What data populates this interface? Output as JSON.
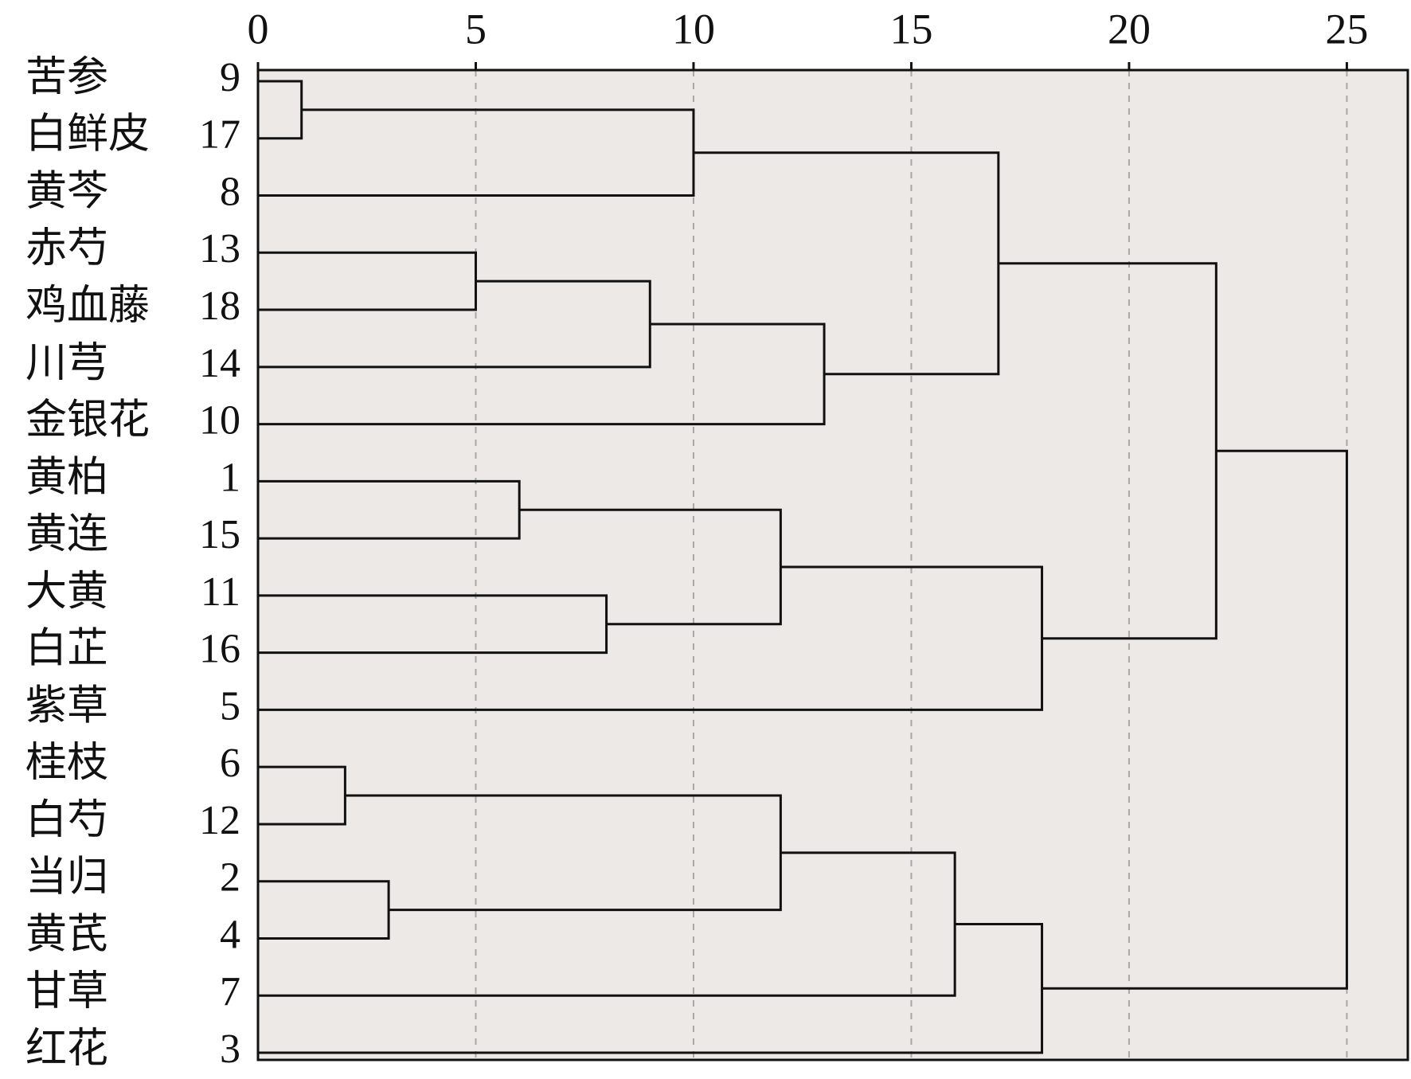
{
  "chart_data": {
    "type": "dendrogram",
    "orientation": "horizontal",
    "xlim": [
      0,
      26.4
    ],
    "xticks": [
      0,
      5,
      10,
      15,
      20,
      25
    ],
    "grid": true,
    "background": "#ece9e6",
    "line_color": "#111111",
    "grid_color": "#a8a8a8",
    "leaves": [
      {
        "label": "苦参",
        "id": 9
      },
      {
        "label": "白鲜皮",
        "id": 17
      },
      {
        "label": "黄芩",
        "id": 8
      },
      {
        "label": "赤芍",
        "id": 13
      },
      {
        "label": "鸡血藤",
        "id": 18
      },
      {
        "label": "川芎",
        "id": 14
      },
      {
        "label": "金银花",
        "id": 10
      },
      {
        "label": "黄柏",
        "id": 1
      },
      {
        "label": "黄连",
        "id": 15
      },
      {
        "label": "大黄",
        "id": 11
      },
      {
        "label": "白芷",
        "id": 16
      },
      {
        "label": "紫草",
        "id": 5
      },
      {
        "label": "桂枝",
        "id": 6
      },
      {
        "label": "白芍",
        "id": 12
      },
      {
        "label": "当归",
        "id": 2
      },
      {
        "label": "黄芪",
        "id": 4
      },
      {
        "label": "甘草",
        "id": 7
      },
      {
        "label": "红花",
        "id": 3
      }
    ],
    "merges": [
      {
        "children": [
          0,
          1
        ],
        "height": 1
      },
      {
        "children": [
          18,
          2
        ],
        "height": 10
      },
      {
        "children": [
          3,
          4
        ],
        "height": 5
      },
      {
        "children": [
          20,
          5
        ],
        "height": 9
      },
      {
        "children": [
          21,
          6
        ],
        "height": 13
      },
      {
        "children": [
          19,
          22
        ],
        "height": 17
      },
      {
        "children": [
          7,
          8
        ],
        "height": 6
      },
      {
        "children": [
          9,
          10
        ],
        "height": 8
      },
      {
        "children": [
          24,
          25
        ],
        "height": 12
      },
      {
        "children": [
          26,
          11
        ],
        "height": 18
      },
      {
        "children": [
          12,
          13
        ],
        "height": 2
      },
      {
        "children": [
          14,
          15
        ],
        "height": 3
      },
      {
        "children": [
          28,
          29
        ],
        "height": 12
      },
      {
        "children": [
          30,
          16
        ],
        "height": 16
      },
      {
        "children": [
          31,
          17
        ],
        "height": 18
      },
      {
        "children": [
          23,
          27
        ],
        "height": 22
      },
      {
        "children": [
          33,
          32
        ],
        "height": 25
      }
    ]
  }
}
